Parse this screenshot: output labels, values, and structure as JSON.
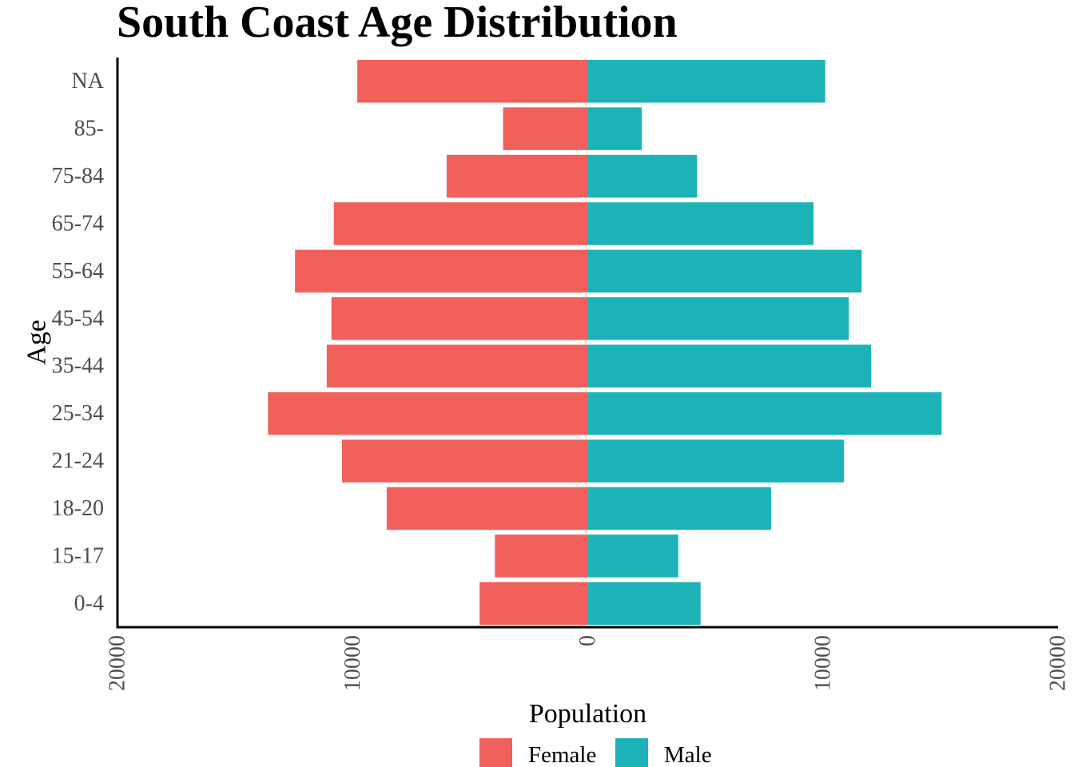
{
  "chart_data": {
    "type": "bar",
    "orientation": "horizontal",
    "subtype": "population-pyramid",
    "title": "South Coast Age Distribution",
    "xlabel": "Population",
    "ylabel": "Age",
    "categories": [
      "0-4",
      "15-17",
      "18-20",
      "21-24",
      "25-34",
      "35-44",
      "45-54",
      "55-64",
      "65-74",
      "75-84",
      "85-",
      "NA"
    ],
    "series": [
      {
        "name": "Female",
        "color": "#F2605C",
        "values": [
          -4600,
          -3950,
          -8550,
          -10450,
          -13600,
          -11100,
          -10900,
          -12450,
          -10800,
          -6000,
          -3600,
          -9800
        ]
      },
      {
        "name": "Male",
        "color": "#1BB3B8",
        "values": [
          4800,
          3850,
          7800,
          10900,
          15050,
          12050,
          11100,
          11650,
          9600,
          4650,
          2300,
          10100
        ]
      }
    ],
    "xlim": [
      -20000,
      20000
    ],
    "x_ticks": [
      -20000,
      -10000,
      0,
      10000,
      20000
    ],
    "x_tick_labels": [
      "20000",
      "10000",
      "0",
      "10000",
      "20000"
    ],
    "grid": false,
    "legend_position": "bottom"
  }
}
